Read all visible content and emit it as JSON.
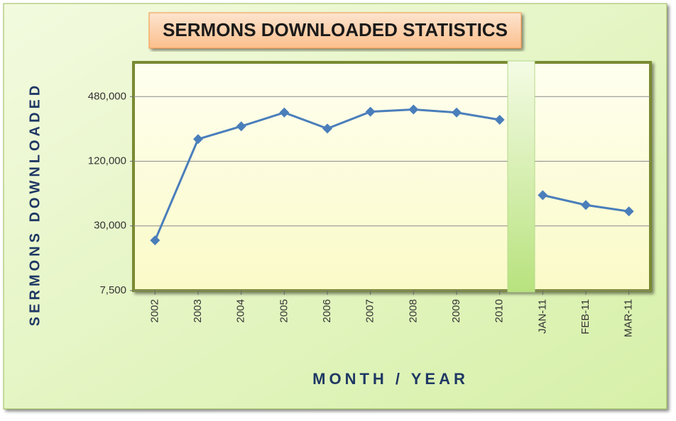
{
  "chart_data": {
    "type": "line",
    "title": "SERMONS DOWNLOADED STATISTICS",
    "x_label": "MONTH / YEAR",
    "y_label": "SERMONS DOWNLOADED",
    "categories": [
      "2002",
      "2003",
      "2004",
      "2005",
      "2006",
      "2007",
      "2008",
      "2009",
      "2010",
      "JAN-11",
      "FEB-11",
      "MAR-11"
    ],
    "series": [
      {
        "name": "Sermons Downloaded",
        "color": "#4a7ebb",
        "values": [
          22000,
          193000,
          254000,
          341000,
          242000,
          347000,
          364000,
          341000,
          292000,
          58000,
          47000,
          41000
        ]
      }
    ],
    "y_scale": "log",
    "ylim": [
      7500,
      1000000
    ],
    "yticks": [
      {
        "value": 7500,
        "label": "7,500"
      },
      {
        "value": 30000,
        "label": "30,000"
      },
      {
        "value": 120000,
        "label": "120,000"
      },
      {
        "value": 480000,
        "label": "480,000"
      }
    ],
    "grid": true,
    "axis_break_after": 8
  }
}
